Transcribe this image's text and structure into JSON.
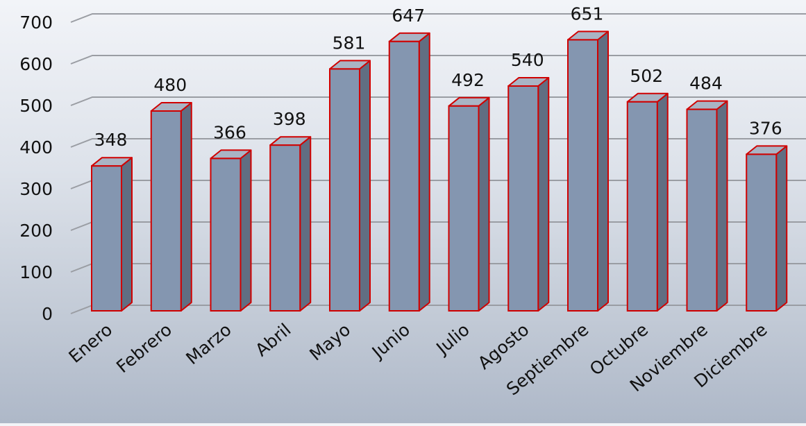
{
  "chart_data": {
    "type": "bar",
    "title": "",
    "xlabel": "",
    "ylabel": "",
    "categories": [
      "Enero",
      "Febrero",
      "Marzo",
      "Abril",
      "Mayo",
      "Junio",
      "Julio",
      "Agosto",
      "Septiembre",
      "Octubre",
      "Noviembre",
      "Diciembre"
    ],
    "values": [
      348,
      480,
      366,
      398,
      581,
      647,
      492,
      540,
      651,
      502,
      484,
      376
    ],
    "ylim": [
      0,
      700
    ],
    "yticks": [
      "0",
      "100",
      "200",
      "300",
      "400",
      "500",
      "600",
      "700"
    ],
    "grid": true,
    "style": "3d-column",
    "data_labels": true,
    "colors": {
      "bar_front": "#8496b0",
      "bar_side": "#616e82",
      "bar_top": "#a9b4c4",
      "bar_outline": "#d00000",
      "gridline": "#9a9da3"
    }
  }
}
